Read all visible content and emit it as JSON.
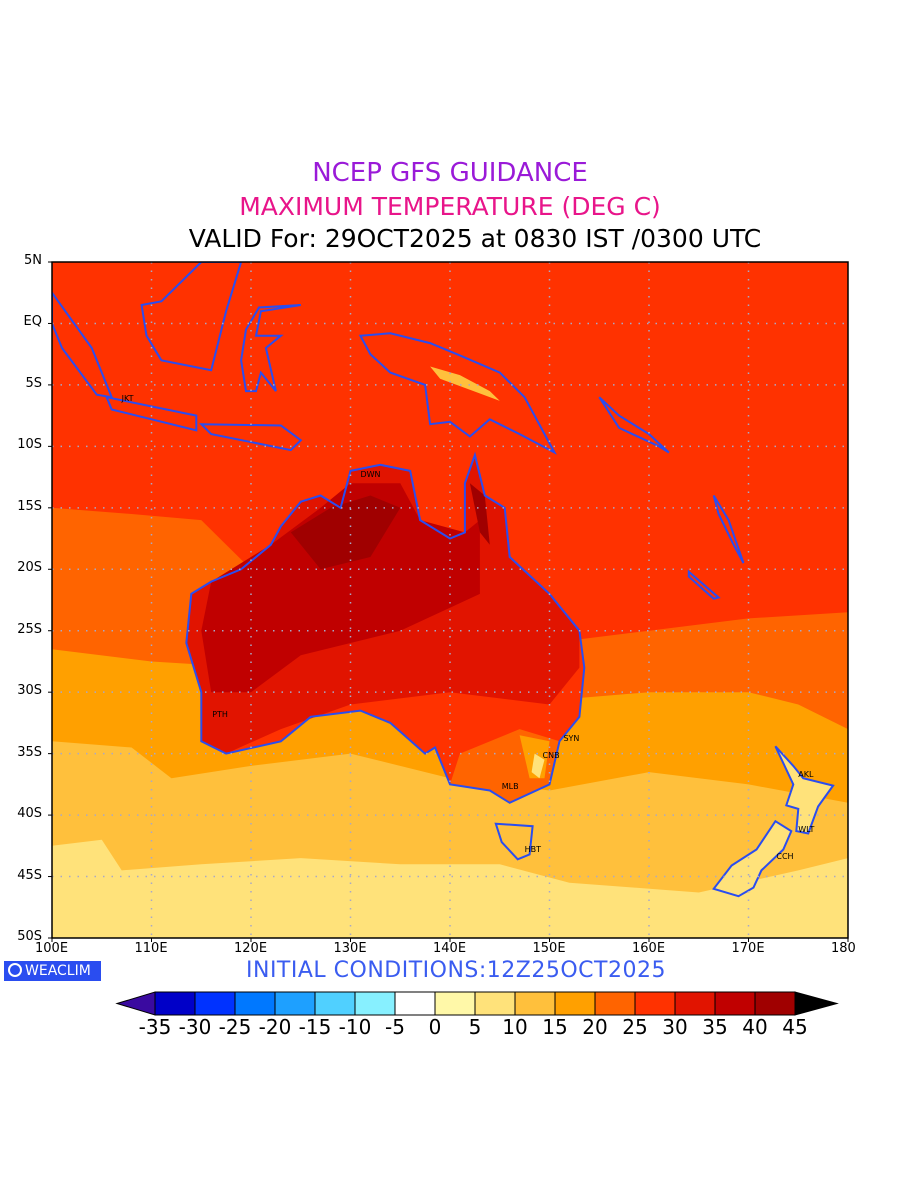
{
  "title": {
    "line1": "NCEP GFS GUIDANCE",
    "line2": "MAXIMUM TEMPERATURE (DEG C)",
    "line3": "VALID For: 29OCT2025 at 0830 IST /0300 UTC"
  },
  "axes": {
    "lat_labels": [
      "5N",
      "EQ",
      "5S",
      "10S",
      "15S",
      "20S",
      "25S",
      "30S",
      "35S",
      "40S",
      "45S",
      "50S"
    ],
    "lon_labels": [
      "100E",
      "110E",
      "120E",
      "130E",
      "140E",
      "150E",
      "160E",
      "170E",
      "180"
    ]
  },
  "cities": [
    {
      "label": "JKT",
      "lon": 106.8,
      "lat": -6.2
    },
    {
      "label": "DWN",
      "lon": 130.8,
      "lat": -12.4
    },
    {
      "label": "PTH",
      "lon": 115.9,
      "lat": -31.9
    },
    {
      "label": "SYN",
      "lon": 151.2,
      "lat": -33.9
    },
    {
      "label": "CNB",
      "lon": 149.1,
      "lat": -35.3
    },
    {
      "label": "MLB",
      "lon": 145.0,
      "lat": -37.8
    },
    {
      "label": "HBT",
      "lon": 147.3,
      "lat": -42.9
    },
    {
      "label": "AKL",
      "lon": 174.8,
      "lat": -36.8
    },
    {
      "label": "WLT",
      "lon": 174.8,
      "lat": -41.3
    },
    {
      "label": "CCH",
      "lon": 172.6,
      "lat": -43.5
    }
  ],
  "logo": "WEACLIM",
  "initial_conditions": "INITIAL  CONDITIONS:12Z25OCT2025",
  "colorbar": {
    "labels": [
      "-35",
      "-30",
      "-25",
      "-20",
      "-15",
      "-10",
      "-5",
      "0",
      "5",
      "10",
      "15",
      "20",
      "25",
      "30",
      "35",
      "40",
      "45"
    ],
    "under_color": "#3a0aa0",
    "over_color": "#000000",
    "colors": [
      "#0000c8",
      "#0032ff",
      "#0078ff",
      "#1ea0ff",
      "#50d0ff",
      "#87f0ff",
      "#ffffff",
      "#fff8a8",
      "#ffe27a",
      "#ffc03c",
      "#ffa000",
      "#ff6400",
      "#ff3200",
      "#e11400",
      "#c00000",
      "#a00000"
    ]
  }
}
